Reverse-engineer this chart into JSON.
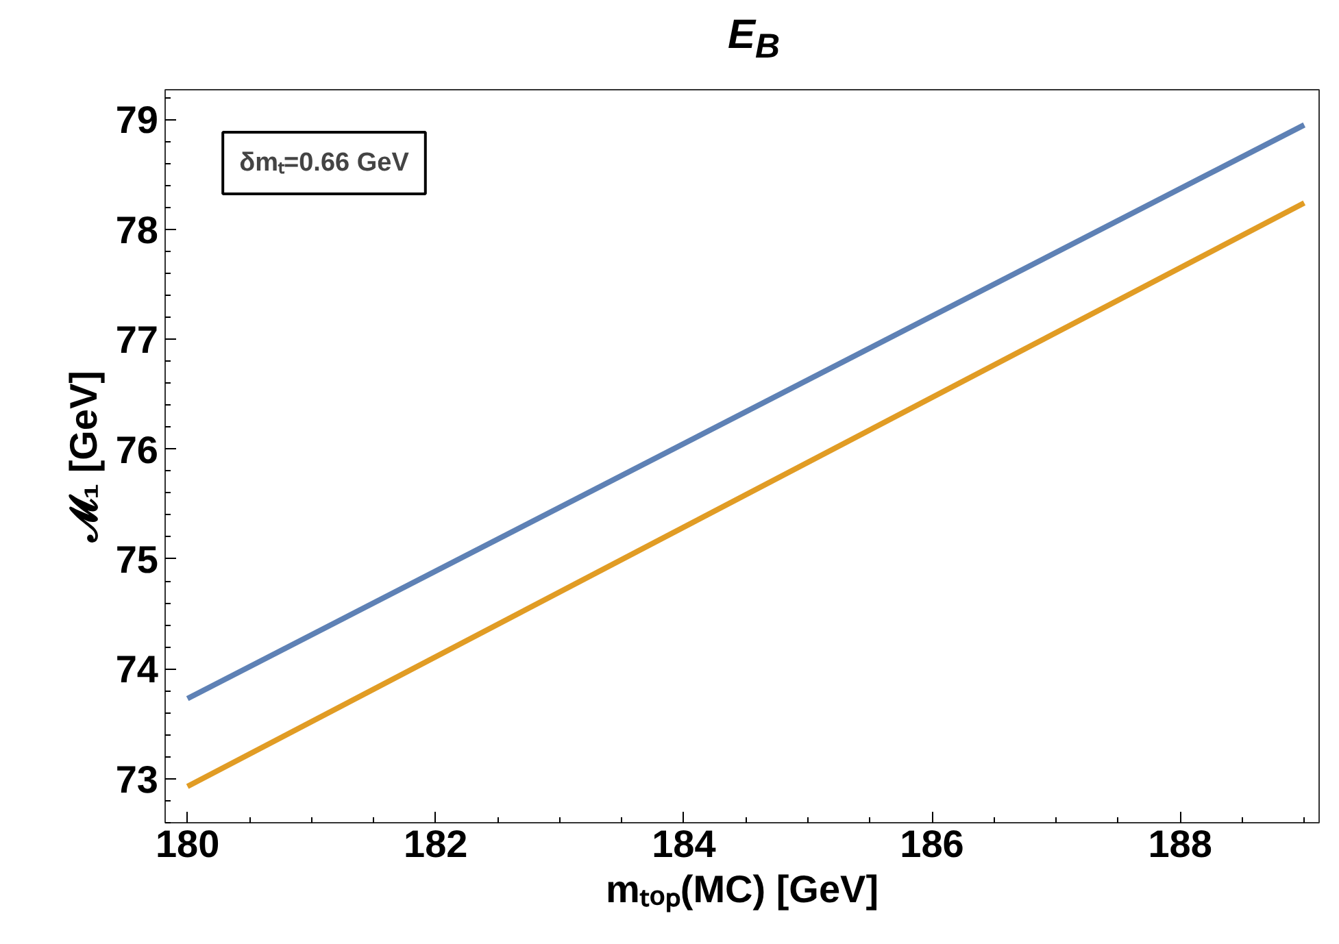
{
  "chart_data": {
    "type": "line",
    "title": "E$_{B}$",
    "xlabel": "mₜₒₚ(MC) [GeV]",
    "ylabel": "𝓜₁ [GeV]",
    "annotations": [
      "δmₜ=0.66 GeV"
    ],
    "x": [
      180,
      189
    ],
    "series": [
      {
        "color": "#5e81b5",
        "values": [
          73.73,
          78.95
        ]
      },
      {
        "color": "#e19c24",
        "values": [
          72.93,
          78.24
        ]
      }
    ],
    "xlim": [
      179.82,
      189.12
    ],
    "xticks": [
      180,
      182,
      184,
      186,
      188
    ],
    "ylim": [
      72.6,
      79.27
    ],
    "yticks": [
      73,
      74,
      75,
      76,
      77,
      78,
      79
    ],
    "grid": false,
    "marker": "none",
    "line_style": "solid"
  }
}
